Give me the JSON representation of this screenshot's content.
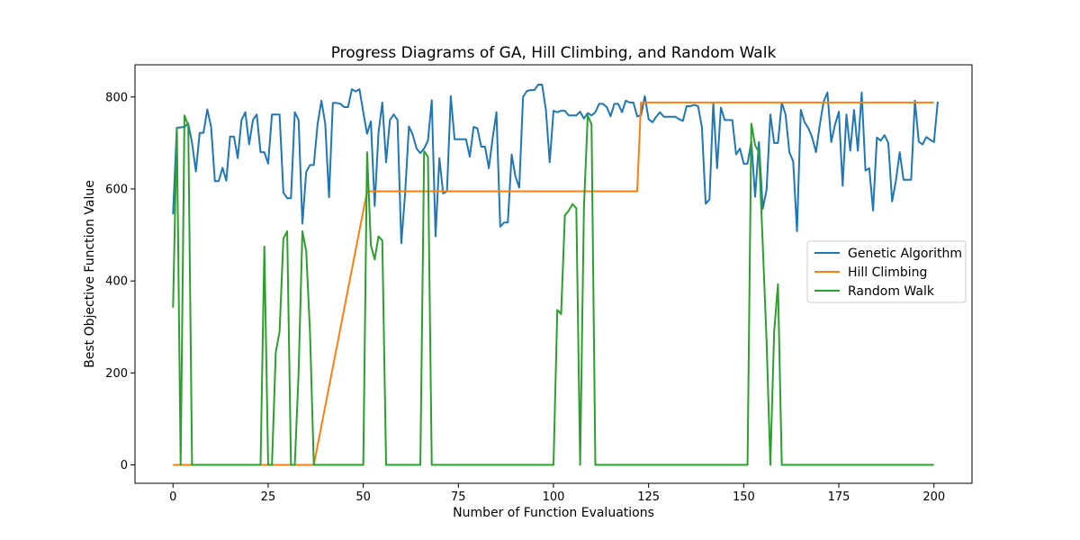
{
  "chart_data": {
    "type": "line",
    "title": "Progress Diagrams of GA, Hill Climbing, and Random Walk",
    "xlabel": "Number of Function Evaluations",
    "ylabel": "Best Objective Function Value",
    "xlim": [
      -10,
      210
    ],
    "ylim": [
      -40,
      870
    ],
    "xticks": [
      0,
      25,
      50,
      75,
      100,
      125,
      150,
      175,
      200
    ],
    "yticks": [
      0,
      200,
      400,
      600,
      800
    ],
    "grid": false,
    "legend_position": "center-right",
    "series": [
      {
        "name": "Genetic Algorithm",
        "color": "#1f77b4",
        "points": [
          [
            0,
            545
          ],
          [
            1,
            733
          ],
          [
            3,
            735
          ],
          [
            4,
            742
          ],
          [
            5,
            700
          ],
          [
            6,
            638
          ],
          [
            7,
            722
          ],
          [
            8,
            722
          ],
          [
            9,
            773
          ],
          [
            10,
            735
          ],
          [
            11,
            617
          ],
          [
            12,
            617
          ],
          [
            13,
            646
          ],
          [
            14,
            618
          ],
          [
            15,
            714
          ],
          [
            16,
            714
          ],
          [
            17,
            667
          ],
          [
            18,
            750
          ],
          [
            19,
            767
          ],
          [
            20,
            697
          ],
          [
            21,
            750
          ],
          [
            22,
            762
          ],
          [
            23,
            680
          ],
          [
            24,
            680
          ],
          [
            25,
            655
          ],
          [
            26,
            762
          ],
          [
            27,
            762
          ],
          [
            28,
            762
          ],
          [
            29,
            592
          ],
          [
            30,
            580
          ],
          [
            31,
            580
          ],
          [
            32,
            767
          ],
          [
            33,
            750
          ],
          [
            34,
            525
          ],
          [
            35,
            637
          ],
          [
            36,
            652
          ],
          [
            37,
            652
          ],
          [
            38,
            742
          ],
          [
            39,
            792
          ],
          [
            40,
            742
          ],
          [
            41,
            582
          ],
          [
            42,
            787
          ],
          [
            43,
            787
          ],
          [
            44,
            785
          ],
          [
            45,
            778
          ],
          [
            46,
            778
          ],
          [
            47,
            817
          ],
          [
            48,
            812
          ],
          [
            49,
            817
          ],
          [
            50,
            767
          ],
          [
            51,
            720
          ],
          [
            52,
            747
          ],
          [
            53,
            563
          ],
          [
            54,
            722
          ],
          [
            55,
            788
          ],
          [
            56,
            658
          ],
          [
            57,
            750
          ],
          [
            58,
            762
          ],
          [
            59,
            750
          ],
          [
            60,
            482
          ],
          [
            61,
            590
          ],
          [
            62,
            736
          ],
          [
            63,
            718
          ],
          [
            64,
            688
          ],
          [
            65,
            678
          ],
          [
            66,
            688
          ],
          [
            67,
            705
          ],
          [
            68,
            793
          ],
          [
            69,
            497
          ],
          [
            70,
            667
          ],
          [
            71,
            590
          ],
          [
            72,
            595
          ],
          [
            73,
            802
          ],
          [
            74,
            708
          ],
          [
            75,
            708
          ],
          [
            76,
            708
          ],
          [
            77,
            708
          ],
          [
            78,
            670
          ],
          [
            79,
            735
          ],
          [
            80,
            732
          ],
          [
            81,
            692
          ],
          [
            82,
            692
          ],
          [
            83,
            645
          ],
          [
            84,
            710
          ],
          [
            85,
            767
          ],
          [
            86,
            518
          ],
          [
            87,
            527
          ],
          [
            88,
            527
          ],
          [
            89,
            675
          ],
          [
            90,
            627
          ],
          [
            91,
            603
          ],
          [
            92,
            800
          ],
          [
            93,
            813
          ],
          [
            94,
            815
          ],
          [
            95,
            815
          ],
          [
            96,
            827
          ],
          [
            97,
            827
          ],
          [
            98,
            772
          ],
          [
            99,
            658
          ],
          [
            100,
            770
          ],
          [
            101,
            767
          ],
          [
            102,
            770
          ],
          [
            103,
            770
          ],
          [
            104,
            760
          ],
          [
            105,
            760
          ],
          [
            106,
            760
          ],
          [
            107,
            768
          ],
          [
            108,
            753
          ],
          [
            109,
            765
          ],
          [
            110,
            760
          ],
          [
            111,
            767
          ],
          [
            112,
            785
          ],
          [
            113,
            785
          ],
          [
            114,
            778
          ],
          [
            115,
            758
          ],
          [
            116,
            785
          ],
          [
            117,
            785
          ],
          [
            118,
            767
          ],
          [
            119,
            792
          ],
          [
            120,
            788
          ],
          [
            121,
            788
          ],
          [
            122,
            758
          ],
          [
            123,
            760
          ],
          [
            124,
            802
          ],
          [
            125,
            752
          ],
          [
            126,
            745
          ],
          [
            127,
            757
          ],
          [
            128,
            767
          ],
          [
            129,
            757
          ],
          [
            130,
            757
          ],
          [
            131,
            757
          ],
          [
            132,
            757
          ],
          [
            133,
            752
          ],
          [
            134,
            748
          ],
          [
            135,
            780
          ],
          [
            136,
            780
          ],
          [
            137,
            783
          ],
          [
            138,
            780
          ],
          [
            139,
            735
          ],
          [
            140,
            568
          ],
          [
            141,
            577
          ],
          [
            142,
            788
          ],
          [
            143,
            645
          ],
          [
            144,
            777
          ],
          [
            145,
            750
          ],
          [
            146,
            750
          ],
          [
            147,
            750
          ],
          [
            148,
            675
          ],
          [
            149,
            688
          ],
          [
            150,
            655
          ],
          [
            151,
            655
          ],
          [
            152,
            703
          ],
          [
            153,
            583
          ],
          [
            154,
            702
          ],
          [
            155,
            557
          ],
          [
            156,
            598
          ],
          [
            157,
            762
          ],
          [
            158,
            700
          ],
          [
            159,
            700
          ],
          [
            160,
            788
          ],
          [
            161,
            762
          ],
          [
            162,
            680
          ],
          [
            163,
            660
          ],
          [
            164,
            508
          ],
          [
            165,
            772
          ],
          [
            166,
            745
          ],
          [
            167,
            732
          ],
          [
            168,
            712
          ],
          [
            169,
            680
          ],
          [
            170,
            740
          ],
          [
            171,
            790
          ],
          [
            172,
            810
          ],
          [
            173,
            702
          ],
          [
            174,
            740
          ],
          [
            175,
            768
          ],
          [
            176,
            607
          ],
          [
            177,
            762
          ],
          [
            178,
            683
          ],
          [
            179,
            772
          ],
          [
            180,
            683
          ],
          [
            181,
            810
          ],
          [
            182,
            640
          ],
          [
            183,
            645
          ],
          [
            184,
            553
          ],
          [
            185,
            712
          ],
          [
            186,
            705
          ],
          [
            187,
            717
          ],
          [
            188,
            700
          ],
          [
            189,
            573
          ],
          [
            190,
            618
          ],
          [
            191,
            680
          ],
          [
            192,
            620
          ],
          [
            193,
            620
          ],
          [
            194,
            620
          ],
          [
            195,
            792
          ],
          [
            196,
            703
          ],
          [
            197,
            697
          ],
          [
            198,
            713
          ],
          [
            199,
            707
          ],
          [
            200,
            702
          ],
          [
            201,
            790
          ]
        ]
      },
      {
        "name": "Hill Climbing",
        "color": "#ff7f0e",
        "points": [
          [
            0,
            0
          ],
          [
            37,
            0
          ],
          [
            51,
            595
          ],
          [
            122,
            595
          ],
          [
            123,
            788
          ],
          [
            200,
            788
          ]
        ]
      },
      {
        "name": "Random Walk",
        "color": "#2ca02c",
        "points": [
          [
            0,
            342
          ],
          [
            1,
            733
          ],
          [
            2,
            0
          ],
          [
            3,
            760
          ],
          [
            4,
            738
          ],
          [
            5,
            0
          ],
          [
            23,
            0
          ],
          [
            24,
            475
          ],
          [
            25,
            0
          ],
          [
            26,
            0
          ],
          [
            27,
            245
          ],
          [
            28,
            290
          ],
          [
            29,
            492
          ],
          [
            30,
            508
          ],
          [
            31,
            0
          ],
          [
            32,
            0
          ],
          [
            33,
            200
          ],
          [
            34,
            508
          ],
          [
            35,
            465
          ],
          [
            36,
            288
          ],
          [
            37,
            0
          ],
          [
            50,
            0
          ],
          [
            51,
            680
          ],
          [
            52,
            478
          ],
          [
            53,
            447
          ],
          [
            54,
            497
          ],
          [
            55,
            488
          ],
          [
            56,
            0
          ],
          [
            65,
            0
          ],
          [
            66,
            682
          ],
          [
            67,
            670
          ],
          [
            68,
            0
          ],
          [
            100,
            0
          ],
          [
            101,
            337
          ],
          [
            102,
            328
          ],
          [
            103,
            543
          ],
          [
            104,
            553
          ],
          [
            105,
            567
          ],
          [
            106,
            558
          ],
          [
            107,
            0
          ],
          [
            108,
            560
          ],
          [
            109,
            760
          ],
          [
            110,
            740
          ],
          [
            111,
            0
          ],
          [
            151,
            0
          ],
          [
            152,
            742
          ],
          [
            153,
            695
          ],
          [
            154,
            680
          ],
          [
            155,
            480
          ],
          [
            156,
            270
          ],
          [
            157,
            0
          ],
          [
            158,
            290
          ],
          [
            159,
            393
          ],
          [
            160,
            0
          ],
          [
            200,
            0
          ]
        ]
      }
    ]
  }
}
